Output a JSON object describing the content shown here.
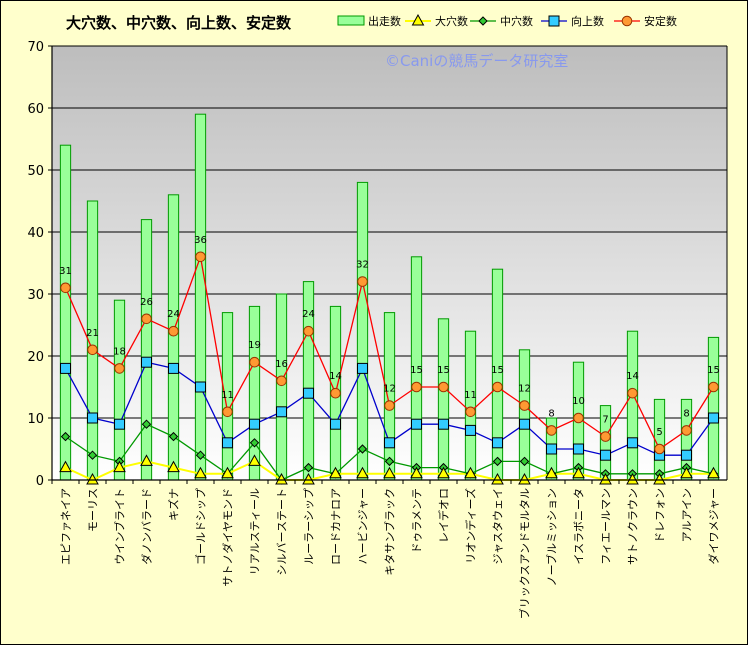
{
  "chart_data": {
    "type": "bar",
    "title": "大穴数、中穴数、向上数、安定数",
    "watermark": "©Caniの競馬データ研究室",
    "ylim": [
      0,
      70
    ],
    "yticks": [
      0,
      10,
      20,
      30,
      40,
      50,
      60,
      70
    ],
    "categories": [
      "エピファネイア",
      "モーリス",
      "ウインブライト",
      "ダノンバラード",
      "キズナ",
      "ゴールドシップ",
      "サトノダイヤモンド",
      "リアルスティール",
      "シルバーステート",
      "ルーラーシップ",
      "ロードカナロア",
      "ハービンジャー",
      "キタサンブラック",
      "ドゥラメンテ",
      "レイデオロ",
      "リオンディーズ",
      "ジャスタウェイ",
      "ブリックスアンドモルタル",
      "ノーブルミッション",
      "イスラボニータ",
      "フィエールマン",
      "サトノクラウン",
      "ドレフォン",
      "アルアイン",
      "ダイワメジャー"
    ],
    "legend": [
      "出走数",
      "大穴数",
      "中穴数",
      "向上数",
      "安定数"
    ],
    "colors": {
      "bar_fill": "#99ff99",
      "bar_stroke": "#009900",
      "big": "#ffff00",
      "mid": "#009900",
      "up": "#0000cc",
      "up_marker": "#33ccff",
      "stable": "#ff0000",
      "stable_marker": "#ff9933"
    },
    "series": [
      {
        "name": "出走数",
        "values": [
          54,
          45,
          29,
          42,
          46,
          59,
          27,
          28,
          30,
          32,
          28,
          48,
          27,
          36,
          26,
          24,
          34,
          21,
          10,
          19,
          12,
          24,
          13,
          13,
          23
        ]
      },
      {
        "name": "大穴数",
        "values": [
          2,
          0,
          2,
          3,
          2,
          1,
          1,
          3,
          0,
          0,
          1,
          1,
          1,
          1,
          1,
          1,
          0,
          0,
          1,
          1,
          0,
          0,
          0,
          1,
          1
        ]
      },
      {
        "name": "中穴数",
        "values": [
          7,
          4,
          3,
          9,
          7,
          4,
          1,
          6,
          0,
          2,
          1,
          5,
          3,
          2,
          2,
          1,
          3,
          3,
          1,
          2,
          1,
          1,
          1,
          2,
          1
        ]
      },
      {
        "name": "向上数",
        "values": [
          18,
          10,
          9,
          19,
          18,
          15,
          6,
          9,
          11,
          14,
          9,
          18,
          6,
          9,
          9,
          8,
          6,
          9,
          5,
          5,
          4,
          6,
          4,
          4,
          10
        ]
      },
      {
        "name": "安定数",
        "values": [
          31,
          21,
          18,
          26,
          24,
          36,
          11,
          19,
          16,
          24,
          14,
          32,
          12,
          15,
          15,
          11,
          15,
          12,
          8,
          10,
          7,
          14,
          5,
          8,
          15
        ]
      }
    ]
  }
}
